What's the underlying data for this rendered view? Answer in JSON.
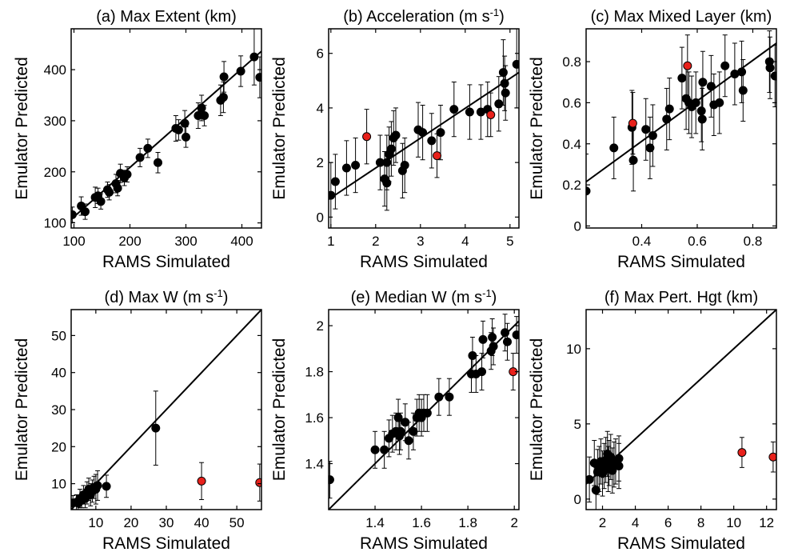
{
  "figure": {
    "xlabel": "RAMS Simulated",
    "ylabel": "Emulator Predicted"
  },
  "chart_data": [
    {
      "type": "scatter",
      "title": "(a) Max Extent (km)",
      "xlabel": "RAMS Simulated",
      "ylabel": "Emulator Predicted",
      "xlim": [
        95,
        435
      ],
      "ylim": [
        90,
        480
      ],
      "xticks": [
        100,
        200,
        300,
        400
      ],
      "yticks": [
        100,
        200,
        300,
        400
      ],
      "fit_line": {
        "x": [
          95,
          435
        ],
        "y": [
          107,
          436
        ]
      },
      "points": [
        {
          "x": 97,
          "y": 116,
          "err": 15
        },
        {
          "x": 113,
          "y": 133,
          "err": 18
        },
        {
          "x": 120,
          "y": 122,
          "err": 15
        },
        {
          "x": 138,
          "y": 150,
          "err": 20
        },
        {
          "x": 143,
          "y": 153,
          "err": 15
        },
        {
          "x": 148,
          "y": 142,
          "err": 15
        },
        {
          "x": 160,
          "y": 165,
          "err": 15
        },
        {
          "x": 163,
          "y": 160,
          "err": 15
        },
        {
          "x": 175,
          "y": 177,
          "err": 18
        },
        {
          "x": 178,
          "y": 168,
          "err": 15
        },
        {
          "x": 183,
          "y": 197,
          "err": 18
        },
        {
          "x": 190,
          "y": 188,
          "err": 15
        },
        {
          "x": 195,
          "y": 195,
          "err": 15
        },
        {
          "x": 218,
          "y": 228,
          "err": 18
        },
        {
          "x": 232,
          "y": 246,
          "err": 18
        },
        {
          "x": 250,
          "y": 218,
          "err": 20
        },
        {
          "x": 282,
          "y": 285,
          "err": 25
        },
        {
          "x": 287,
          "y": 282,
          "err": 20
        },
        {
          "x": 298,
          "y": 295,
          "err": 25
        },
        {
          "x": 300,
          "y": 268,
          "err": 20
        },
        {
          "x": 322,
          "y": 310,
          "err": 25
        },
        {
          "x": 328,
          "y": 325,
          "err": 25
        },
        {
          "x": 333,
          "y": 310,
          "err": 20
        },
        {
          "x": 362,
          "y": 340,
          "err": 30
        },
        {
          "x": 367,
          "y": 346,
          "err": 30
        },
        {
          "x": 368,
          "y": 386,
          "err": 30
        },
        {
          "x": 398,
          "y": 397,
          "err": 30
        },
        {
          "x": 422,
          "y": 425,
          "err": 55
        },
        {
          "x": 432,
          "y": 385,
          "err": 40
        }
      ],
      "outliers": []
    },
    {
      "type": "scatter",
      "title": "(b) Acceleration (m s",
      "title_sup": "-1",
      "title_end": ")",
      "xlabel": "RAMS Simulated",
      "ylabel": "Emulator Predicted",
      "xlim": [
        0.95,
        5.2
      ],
      "ylim": [
        -0.4,
        6.9
      ],
      "xticks": [
        1,
        2,
        3,
        4,
        5
      ],
      "yticks": [
        0,
        2,
        4,
        6
      ],
      "fit_line": {
        "x": [
          0.95,
          5.2
        ],
        "y": [
          0.65,
          5.3
        ]
      },
      "points": [
        {
          "x": 1.0,
          "y": 0.8,
          "err": 1.2
        },
        {
          "x": 1.1,
          "y": 1.3,
          "err": 1.0
        },
        {
          "x": 1.35,
          "y": 1.8,
          "err": 1.0
        },
        {
          "x": 1.55,
          "y": 1.9,
          "err": 1.0
        },
        {
          "x": 2.1,
          "y": 2.0,
          "err": 1.0
        },
        {
          "x": 2.2,
          "y": 1.4,
          "err": 1.0
        },
        {
          "x": 2.25,
          "y": 1.25,
          "err": 1.0
        },
        {
          "x": 2.25,
          "y": 2.0,
          "err": 1.0
        },
        {
          "x": 2.3,
          "y": 2.3,
          "err": 1.0
        },
        {
          "x": 2.35,
          "y": 2.5,
          "err": 1.0
        },
        {
          "x": 2.4,
          "y": 2.9,
          "err": 1.0
        },
        {
          "x": 2.45,
          "y": 3.0,
          "err": 1.0
        },
        {
          "x": 2.6,
          "y": 1.7,
          "err": 1.0
        },
        {
          "x": 2.65,
          "y": 1.9,
          "err": 1.0
        },
        {
          "x": 2.95,
          "y": 3.2,
          "err": 1.0
        },
        {
          "x": 3.05,
          "y": 3.1,
          "err": 1.0
        },
        {
          "x": 3.25,
          "y": 2.8,
          "err": 1.0
        },
        {
          "x": 3.45,
          "y": 3.1,
          "err": 1.0
        },
        {
          "x": 3.75,
          "y": 3.95,
          "err": 1.0
        },
        {
          "x": 4.1,
          "y": 3.85,
          "err": 1.0
        },
        {
          "x": 4.35,
          "y": 3.85,
          "err": 1.0
        },
        {
          "x": 4.5,
          "y": 3.95,
          "err": 1.0
        },
        {
          "x": 4.75,
          "y": 4.15,
          "err": 1.0
        },
        {
          "x": 4.85,
          "y": 5.3,
          "err": 1.2
        },
        {
          "x": 4.88,
          "y": 4.9,
          "err": 1.0
        },
        {
          "x": 4.9,
          "y": 4.55,
          "err": 1.0
        },
        {
          "x": 5.15,
          "y": 5.6,
          "err": 1.6
        }
      ],
      "outliers": [
        {
          "x": 1.8,
          "y": 2.95,
          "err": 1.0
        },
        {
          "x": 3.37,
          "y": 2.25,
          "err": 0.8
        },
        {
          "x": 4.57,
          "y": 3.75,
          "err": 0.8
        }
      ]
    },
    {
      "type": "scatter",
      "title": "(c) Max Mixed Layer (km)",
      "xlabel": "RAMS Simulated",
      "ylabel": "Emulator Predicted",
      "xlim": [
        0.2,
        0.885
      ],
      "ylim": [
        -0.01,
        0.96
      ],
      "xticks": [
        0.4,
        0.6,
        0.8
      ],
      "yticks": [
        0,
        0.2,
        0.4,
        0.6,
        0.8
      ],
      "fit_line": {
        "x": [
          0.2,
          0.885
        ],
        "y": [
          0.215,
          0.89
        ]
      },
      "points": [
        {
          "x": 0.2,
          "y": 0.17,
          "err": 0.18
        },
        {
          "x": 0.3,
          "y": 0.38,
          "err": 0.15
        },
        {
          "x": 0.365,
          "y": 0.48,
          "err": 0.18
        },
        {
          "x": 0.37,
          "y": 0.32,
          "err": 0.15
        },
        {
          "x": 0.415,
          "y": 0.47,
          "err": 0.15
        },
        {
          "x": 0.43,
          "y": 0.38,
          "err": 0.15
        },
        {
          "x": 0.44,
          "y": 0.44,
          "err": 0.15
        },
        {
          "x": 0.49,
          "y": 0.52,
          "err": 0.15
        },
        {
          "x": 0.5,
          "y": 0.57,
          "err": 0.15
        },
        {
          "x": 0.545,
          "y": 0.72,
          "err": 0.15
        },
        {
          "x": 0.56,
          "y": 0.62,
          "err": 0.15
        },
        {
          "x": 0.57,
          "y": 0.6,
          "err": 0.15
        },
        {
          "x": 0.58,
          "y": 0.58,
          "err": 0.15
        },
        {
          "x": 0.595,
          "y": 0.6,
          "err": 0.15
        },
        {
          "x": 0.615,
          "y": 0.56,
          "err": 0.15
        },
        {
          "x": 0.618,
          "y": 0.52,
          "err": 0.15
        },
        {
          "x": 0.62,
          "y": 0.7,
          "err": 0.15
        },
        {
          "x": 0.65,
          "y": 0.68,
          "err": 0.15
        },
        {
          "x": 0.66,
          "y": 0.59,
          "err": 0.15
        },
        {
          "x": 0.68,
          "y": 0.6,
          "err": 0.15
        },
        {
          "x": 0.7,
          "y": 0.78,
          "err": 0.15
        },
        {
          "x": 0.735,
          "y": 0.74,
          "err": 0.15
        },
        {
          "x": 0.76,
          "y": 0.75,
          "err": 0.15
        },
        {
          "x": 0.765,
          "y": 0.66,
          "err": 0.15
        },
        {
          "x": 0.86,
          "y": 0.8,
          "err": 0.15
        },
        {
          "x": 0.862,
          "y": 0.77,
          "err": 0.15
        },
        {
          "x": 0.88,
          "y": 0.73,
          "err": 0.15
        }
      ],
      "outliers": [
        {
          "x": 0.368,
          "y": 0.5,
          "err": 0.15
        },
        {
          "x": 0.565,
          "y": 0.78,
          "err": 0.15
        }
      ]
    },
    {
      "type": "scatter",
      "title": "(d) Max W (m s",
      "title_sup": "-1",
      "title_end": ")",
      "xlabel": "RAMS Simulated",
      "ylabel": "Emulator Predicted",
      "xlim": [
        3,
        57
      ],
      "ylim": [
        3,
        57
      ],
      "xticks": [
        10,
        20,
        30,
        40,
        50
      ],
      "yticks": [
        10,
        20,
        30,
        40,
        50
      ],
      "fit_line": {
        "x": [
          3,
          57
        ],
        "y": [
          3,
          57
        ]
      },
      "points": [
        {
          "x": 3.5,
          "y": 4.8,
          "err": 2.0
        },
        {
          "x": 4.5,
          "y": 5.0,
          "err": 2.0
        },
        {
          "x": 5.0,
          "y": 4.7,
          "err": 2.0
        },
        {
          "x": 5.5,
          "y": 6.0,
          "err": 2.5
        },
        {
          "x": 6.0,
          "y": 5.5,
          "err": 2.0
        },
        {
          "x": 6.5,
          "y": 7.0,
          "err": 2.5
        },
        {
          "x": 7.0,
          "y": 6.0,
          "err": 2.5
        },
        {
          "x": 7.5,
          "y": 7.5,
          "err": 3.0
        },
        {
          "x": 8.0,
          "y": 8.5,
          "err": 3.0
        },
        {
          "x": 8.5,
          "y": 7.0,
          "err": 3.0
        },
        {
          "x": 9.0,
          "y": 8.0,
          "err": 3.0
        },
        {
          "x": 9.5,
          "y": 9.0,
          "err": 3.0
        },
        {
          "x": 10.0,
          "y": 8.5,
          "err": 4.0
        },
        {
          "x": 10.5,
          "y": 9.5,
          "err": 4.0
        },
        {
          "x": 13.0,
          "y": 9.3,
          "err": 3.0
        },
        {
          "x": 27.0,
          "y": 25.0,
          "err": 10.0
        }
      ],
      "outliers": [
        {
          "x": 40.0,
          "y": 10.7,
          "err": 5.0
        },
        {
          "x": 56.5,
          "y": 10.3,
          "err": 5.0
        }
      ]
    },
    {
      "type": "scatter",
      "title": "(e) Median W (m s",
      "title_sup": "-1",
      "title_end": ")",
      "xlabel": "RAMS Simulated",
      "ylabel": "Emulator Predicted",
      "xlim": [
        1.2,
        2.02
      ],
      "ylim": [
        1.2,
        2.07
      ],
      "xticks": [
        1.4,
        1.6,
        1.8,
        2
      ],
      "yticks": [
        1.4,
        1.6,
        1.8,
        2
      ],
      "fit_line": {
        "x": [
          1.2,
          2.02
        ],
        "y": [
          1.2,
          2.02
        ]
      },
      "points": [
        {
          "x": 1.205,
          "y": 1.33,
          "err": 0.08
        },
        {
          "x": 1.4,
          "y": 1.46,
          "err": 0.08
        },
        {
          "x": 1.44,
          "y": 1.46,
          "err": 0.08
        },
        {
          "x": 1.46,
          "y": 1.51,
          "err": 0.08
        },
        {
          "x": 1.475,
          "y": 1.53,
          "err": 0.08
        },
        {
          "x": 1.49,
          "y": 1.54,
          "err": 0.08
        },
        {
          "x": 1.5,
          "y": 1.6,
          "err": 0.08
        },
        {
          "x": 1.505,
          "y": 1.52,
          "err": 0.08
        },
        {
          "x": 1.51,
          "y": 1.54,
          "err": 0.08
        },
        {
          "x": 1.53,
          "y": 1.58,
          "err": 0.08
        },
        {
          "x": 1.545,
          "y": 1.5,
          "err": 0.08
        },
        {
          "x": 1.565,
          "y": 1.54,
          "err": 0.08
        },
        {
          "x": 1.58,
          "y": 1.6,
          "err": 0.08
        },
        {
          "x": 1.59,
          "y": 1.62,
          "err": 0.08
        },
        {
          "x": 1.6,
          "y": 1.6,
          "err": 0.08
        },
        {
          "x": 1.61,
          "y": 1.62,
          "err": 0.08
        },
        {
          "x": 1.625,
          "y": 1.62,
          "err": 0.08
        },
        {
          "x": 1.675,
          "y": 1.69,
          "err": 0.08
        },
        {
          "x": 1.72,
          "y": 1.69,
          "err": 0.08
        },
        {
          "x": 1.815,
          "y": 1.79,
          "err": 0.08
        },
        {
          "x": 1.82,
          "y": 1.87,
          "err": 0.08
        },
        {
          "x": 1.835,
          "y": 1.79,
          "err": 0.08
        },
        {
          "x": 1.86,
          "y": 1.8,
          "err": 0.08
        },
        {
          "x": 1.865,
          "y": 1.94,
          "err": 0.08
        },
        {
          "x": 1.9,
          "y": 1.89,
          "err": 0.08
        },
        {
          "x": 1.905,
          "y": 1.95,
          "err": 0.08
        },
        {
          "x": 1.91,
          "y": 1.91,
          "err": 0.08
        },
        {
          "x": 1.96,
          "y": 1.97,
          "err": 0.08
        },
        {
          "x": 1.97,
          "y": 1.93,
          "err": 0.08
        },
        {
          "x": 2.01,
          "y": 1.96,
          "err": 0.08
        }
      ],
      "outliers": [
        {
          "x": 1.995,
          "y": 1.8,
          "err": 0.08
        }
      ]
    },
    {
      "type": "scatter",
      "title": "(f) Max Pert. Hgt (km)",
      "xlabel": "RAMS Simulated",
      "ylabel": "Emulator Predicted",
      "xlim": [
        1.0,
        12.6
      ],
      "ylim": [
        -0.7,
        12.6
      ],
      "xticks": [
        2,
        4,
        6,
        8,
        10,
        12
      ],
      "yticks": [
        0,
        5,
        10
      ],
      "fit_line": {
        "x": [
          1.0,
          12.6
        ],
        "y": [
          1.0,
          12.6
        ]
      },
      "points": [
        {
          "x": 1.2,
          "y": 1.3,
          "err": 1.5
        },
        {
          "x": 1.5,
          "y": 2.4,
          "err": 1.5
        },
        {
          "x": 1.6,
          "y": 0.6,
          "err": 1.5
        },
        {
          "x": 1.7,
          "y": 1.8,
          "err": 1.5
        },
        {
          "x": 1.8,
          "y": 2.0,
          "err": 1.5
        },
        {
          "x": 1.9,
          "y": 2.5,
          "err": 1.5
        },
        {
          "x": 2.0,
          "y": 1.7,
          "err": 1.5
        },
        {
          "x": 2.1,
          "y": 2.2,
          "err": 1.5
        },
        {
          "x": 2.2,
          "y": 2.6,
          "err": 1.5
        },
        {
          "x": 2.3,
          "y": 3.0,
          "err": 1.5
        },
        {
          "x": 2.35,
          "y": 2.0,
          "err": 1.5
        },
        {
          "x": 2.4,
          "y": 2.4,
          "err": 1.5
        },
        {
          "x": 2.5,
          "y": 2.8,
          "err": 1.5
        },
        {
          "x": 2.6,
          "y": 1.9,
          "err": 1.5
        },
        {
          "x": 2.7,
          "y": 2.3,
          "err": 1.5
        },
        {
          "x": 2.8,
          "y": 2.5,
          "err": 1.5
        },
        {
          "x": 3.0,
          "y": 2.7,
          "err": 1.5
        },
        {
          "x": 3.0,
          "y": 2.2,
          "err": 1.5
        }
      ],
      "outliers": [
        {
          "x": 10.5,
          "y": 3.1,
          "err": 1.0
        },
        {
          "x": 12.4,
          "y": 2.8,
          "err": 1.0
        }
      ]
    }
  ],
  "colors": {
    "point": "#000000",
    "outlier": "#e8211b",
    "line": "#000000"
  }
}
